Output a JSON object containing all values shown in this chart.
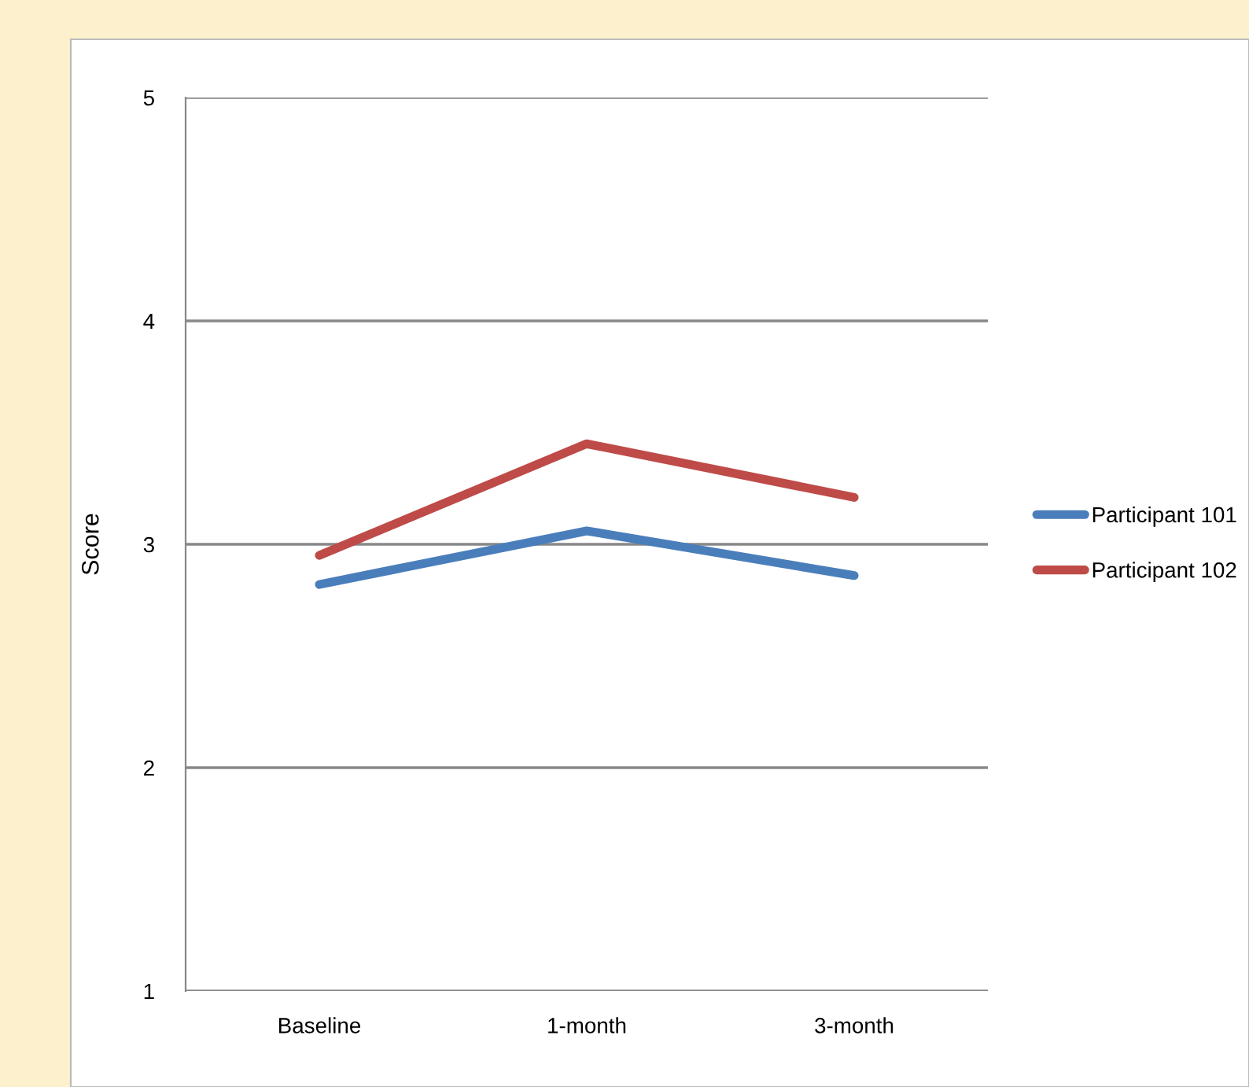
{
  "chart_data": {
    "type": "line",
    "ylabel": "Score",
    "categories": [
      "Baseline",
      "1-month",
      "3-month"
    ],
    "series": [
      {
        "name": "Participant 101",
        "color": "#4a7ebb",
        "values": [
          2.82,
          3.06,
          2.86
        ]
      },
      {
        "name": "Participant 102",
        "color": "#be4b48",
        "values": [
          2.95,
          3.45,
          3.21
        ]
      }
    ],
    "ylim": [
      1,
      5
    ],
    "yticks": [
      1,
      2,
      3,
      4,
      5
    ],
    "grid": "y",
    "legend": "right",
    "marker": "none",
    "line_style": "solid"
  }
}
